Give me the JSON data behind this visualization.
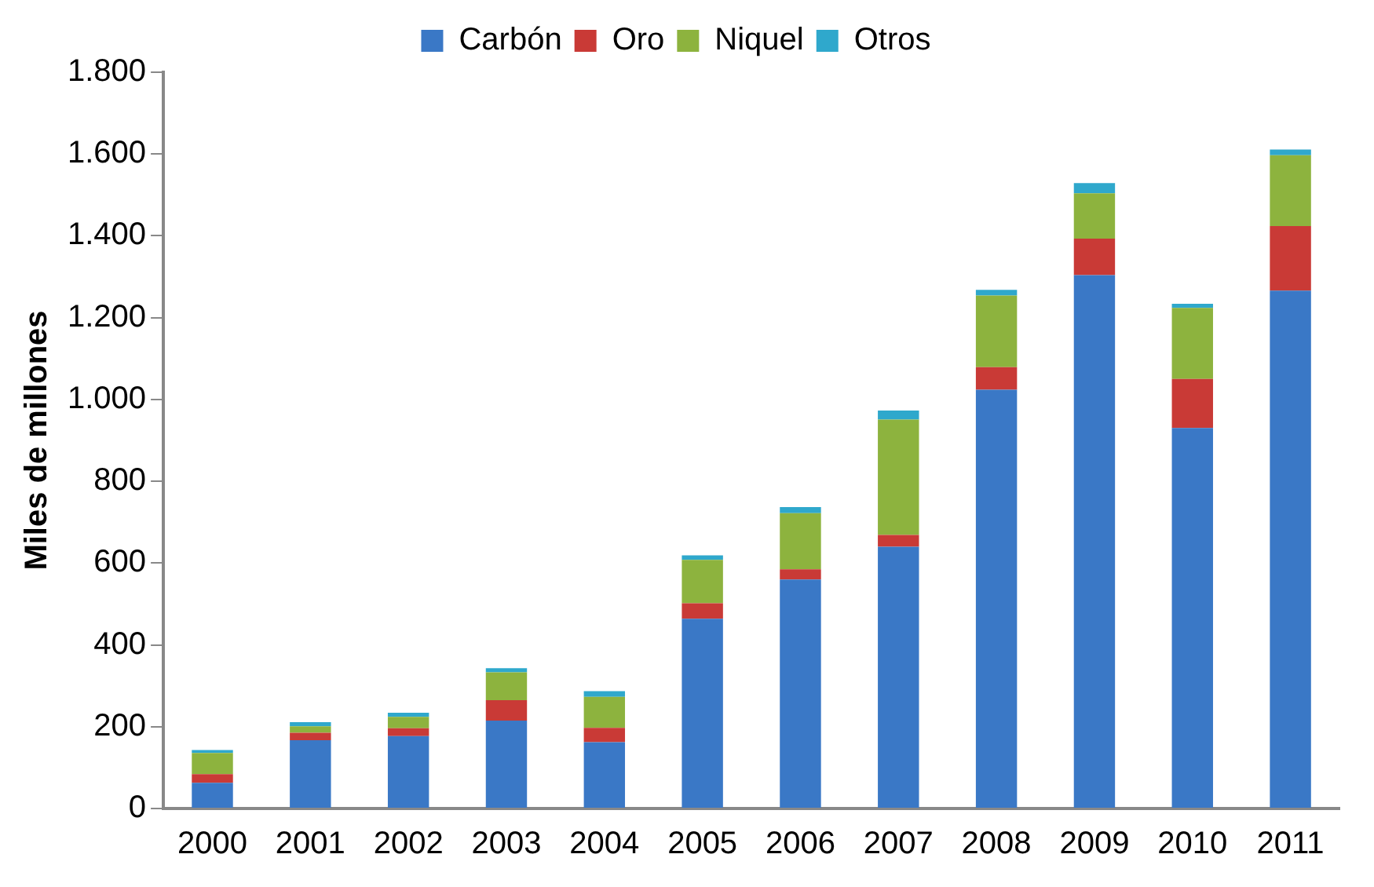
{
  "chart_data": {
    "type": "bar",
    "stacked": true,
    "ylabel": "Miles de millones",
    "legend": "top",
    "grid": false,
    "categories": [
      "2000",
      "2001",
      "2002",
      "2003",
      "2004",
      "2005",
      "2006",
      "2007",
      "2008",
      "2009",
      "2010",
      "2011"
    ],
    "series": [
      {
        "name": "Carbón",
        "color": "#3a78c6",
        "values": [
          63,
          167,
          177,
          215,
          162,
          464,
          560,
          640,
          1024,
          1304,
          930,
          1266
        ]
      },
      {
        "name": "Oro",
        "color": "#c93a36",
        "values": [
          21,
          18,
          19,
          50,
          35,
          38,
          25,
          29,
          55,
          89,
          120,
          158
        ]
      },
      {
        "name": "Niquel",
        "color": "#8db33e",
        "values": [
          52,
          16,
          28,
          68,
          76,
          106,
          137,
          282,
          175,
          111,
          174,
          173
        ]
      },
      {
        "name": "Otros",
        "color": "#2fa8cc",
        "values": [
          7,
          10,
          10,
          10,
          14,
          11,
          15,
          22,
          14,
          25,
          10,
          14
        ]
      }
    ],
    "ylim": [
      0,
      1800
    ],
    "yticks": [
      0,
      200,
      400,
      600,
      800,
      {
        "value": 1000,
        "label": "1.000"
      },
      {
        "value": 1200,
        "label": "1.200"
      },
      {
        "value": 1400,
        "label": "1.400"
      },
      {
        "value": 1600,
        "label": "1.600"
      },
      {
        "value": 1800,
        "label": "1.800"
      }
    ]
  }
}
